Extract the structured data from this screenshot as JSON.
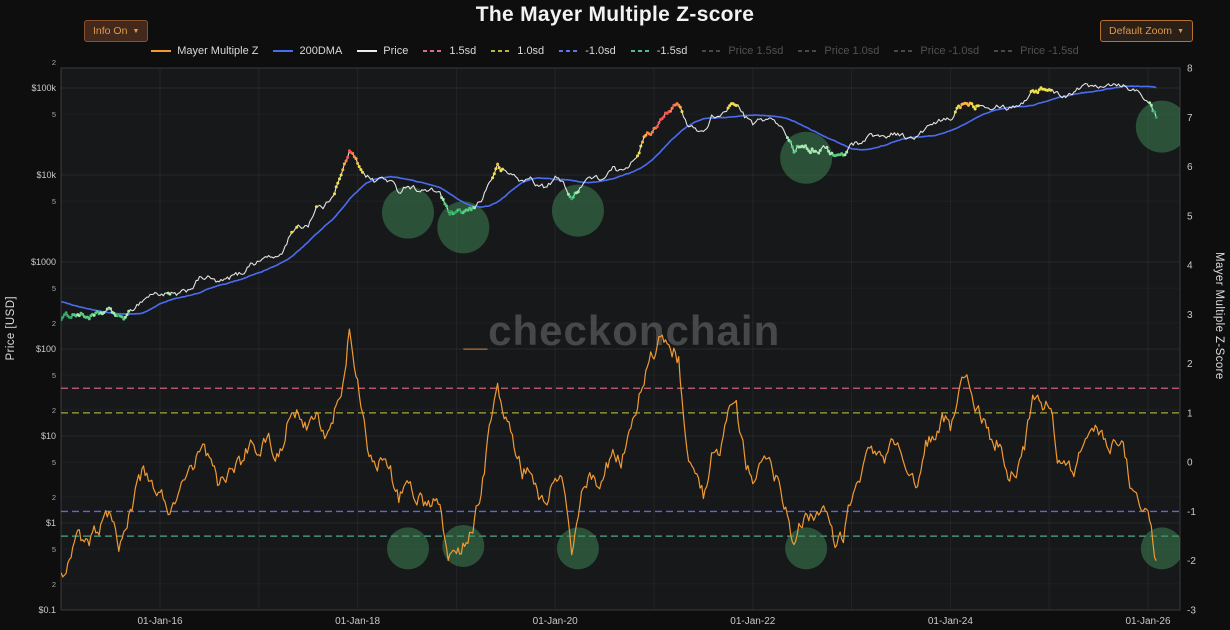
{
  "title": "The Mayer Multiple Z-score",
  "controls": {
    "info_button": {
      "label": "Info On",
      "caret": "▼"
    },
    "zoom_button": {
      "label": "Default Zoom",
      "caret": "▼"
    }
  },
  "watermark": {
    "prefix": "_",
    "text": "checkonchain"
  },
  "colors": {
    "accent": "#e09a4a",
    "background": "#0e0e0f",
    "plot_background": "#17181a",
    "highlight_circle": "#3f8a58"
  },
  "legend": [
    {
      "label": "Mayer Multiple Z",
      "color": "#f09a33",
      "dash": false,
      "active": true
    },
    {
      "label": "200DMA",
      "color": "#4a6cf0",
      "dash": false,
      "active": true
    },
    {
      "label": "Price",
      "color": "#ededed",
      "dash": false,
      "active": true
    },
    {
      "label": "1.5sd",
      "color": "#e06a84",
      "dash": true,
      "active": true
    },
    {
      "label": "1.0sd",
      "color": "#b2b83c",
      "dash": true,
      "active": true
    },
    {
      "label": "-1.0sd",
      "color": "#6472e8",
      "dash": true,
      "active": true
    },
    {
      "label": "-1.5sd",
      "color": "#55b896",
      "dash": true,
      "active": true
    },
    {
      "label": "Price 1.5sd",
      "color": "#6f6f6f",
      "dash": true,
      "active": false
    },
    {
      "label": "Price 1.0sd",
      "color": "#6f6f6f",
      "dash": true,
      "active": false
    },
    {
      "label": "Price -1.0sd",
      "color": "#6f6f6f",
      "dash": true,
      "active": false
    },
    {
      "label": "Price -1.5sd",
      "color": "#6f6f6f",
      "dash": true,
      "active": false
    }
  ],
  "chart_data": {
    "type": "line",
    "title": "The Mayer Multiple Z-score",
    "x_start_year": 2015.0,
    "x_step_years": 0.0833333,
    "x_range_years": [
      2015.0,
      2026.33
    ],
    "x_ticks": [
      {
        "year": 2016,
        "label": "01-Jan-16"
      },
      {
        "year": 2018,
        "label": "01-Jan-18"
      },
      {
        "year": 2020,
        "label": "01-Jan-20"
      },
      {
        "year": 2022,
        "label": "01-Jan-22"
      },
      {
        "year": 2024,
        "label": "01-Jan-24"
      },
      {
        "year": 2026,
        "label": "01-Jan-26"
      }
    ],
    "y_left": {
      "label": "Price [USD]",
      "scale": "log",
      "ticks": [
        {
          "value": 200000,
          "label": "2"
        },
        {
          "value": 100000,
          "label": "$100k"
        },
        {
          "value": 50000,
          "label": "5"
        },
        {
          "value": 10000,
          "label": "$10k"
        },
        {
          "value": 5000,
          "label": "5"
        },
        {
          "value": 1000,
          "label": "$1000"
        },
        {
          "value": 500,
          "label": "5"
        },
        {
          "value": 200,
          "label": "2"
        },
        {
          "value": 100,
          "label": "$100"
        },
        {
          "value": 50,
          "label": "5"
        },
        {
          "value": 20,
          "label": "2"
        },
        {
          "value": 10,
          "label": "$10"
        },
        {
          "value": 5,
          "label": "5"
        },
        {
          "value": 2,
          "label": "2"
        },
        {
          "value": 1,
          "label": "$1"
        },
        {
          "value": 0.5,
          "label": "5"
        },
        {
          "value": 0.2,
          "label": "2"
        },
        {
          "value": 0.1,
          "label": "$0.1"
        }
      ]
    },
    "y_right": {
      "label": "Mayer Multiple Z-Score",
      "range": [
        -3,
        8
      ],
      "ticks": [
        8,
        7,
        6,
        5,
        4,
        3,
        2,
        1,
        0,
        -1,
        -2,
        -3
      ]
    },
    "reference_lines": [
      {
        "name": "1.5sd",
        "z": 1.5,
        "color": "#e06a84"
      },
      {
        "name": "1.0sd",
        "z": 1.0,
        "color": "#b2b83c"
      },
      {
        "name": "-1.0sd",
        "z": -1.0,
        "color": "#6472e8"
      },
      {
        "name": "-1.5sd",
        "z": -1.5,
        "color": "#55b896"
      }
    ],
    "series": [
      {
        "name": "Price",
        "axis": "price",
        "color": "#ededed",
        "values": [
          230,
          245,
          255,
          235,
          235,
          260,
          282,
          230,
          236,
          312,
          372,
          430,
          432,
          420,
          415,
          448,
          530,
          670,
          655,
          575,
          610,
          700,
          745,
          960,
          1000,
          1180,
          1080,
          1350,
          2300,
          2500,
          2700,
          4300,
          4300,
          6100,
          9800,
          19000,
          13500,
          10200,
          8500,
          9200,
          8500,
          6400,
          7700,
          7000,
          6600,
          6500,
          6400,
          3700,
          3500,
          3800,
          4000,
          5200,
          8200,
          12500,
          10500,
          10000,
          8300,
          9200,
          7500,
          7200,
          9100,
          8600,
          5000,
          7500,
          9400,
          9100,
          9200,
          11700,
          10800,
          13500,
          18000,
          28000,
          33000,
          48000,
          58000,
          63500,
          37000,
          34000,
          31000,
          47000,
          43000,
          61000,
          67000,
          47000,
          38000,
          43000,
          45000,
          38000,
          30000,
          19500,
          23000,
          20000,
          19500,
          20500,
          16500,
          16600,
          23000,
          23500,
          28000,
          29000,
          27000,
          30500,
          29200,
          26000,
          27000,
          34500,
          37700,
          42500,
          42500,
          61000,
          70000,
          63000,
          67500,
          61000,
          64500,
          59000,
          63500,
          70000,
          96000,
          95000,
          100000,
          84000,
          83000,
          94000,
          104000,
          106000,
          109000,
          112000,
          113000,
          110000,
          98000,
          90000,
          72000,
          46000
        ]
      },
      {
        "name": "200DMA",
        "axis": "price",
        "color": "#4a6cf0",
        "values": [
          350,
          330,
          310,
          295,
          280,
          268,
          260,
          254,
          252,
          253,
          260,
          290,
          330,
          360,
          385,
          400,
          420,
          450,
          500,
          530,
          560,
          600,
          640,
          700,
          750,
          820,
          900,
          1000,
          1150,
          1400,
          1700,
          2100,
          2600,
          3100,
          4000,
          5300,
          6500,
          8000,
          8900,
          9300,
          9500,
          9300,
          8900,
          8500,
          8100,
          7700,
          7200,
          6300,
          5400,
          4800,
          4400,
          4300,
          4400,
          4900,
          5800,
          7000,
          8200,
          8900,
          9200,
          9100,
          8900,
          8900,
          8700,
          8300,
          8100,
          8300,
          8600,
          9100,
          9800,
          10500,
          11500,
          13000,
          15500,
          19500,
          24500,
          30000,
          36000,
          41000,
          44000,
          45000,
          45500,
          46000,
          47500,
          48500,
          49000,
          48500,
          47800,
          47000,
          45000,
          41500,
          37500,
          33500,
          30000,
          27000,
          24500,
          22000,
          20000,
          19400,
          19600,
          20500,
          22000,
          23800,
          25500,
          26800,
          27400,
          27800,
          28500,
          30000,
          32500,
          35500,
          39500,
          44500,
          49500,
          54000,
          57500,
          59500,
          60500,
          61500,
          63500,
          67500,
          72500,
          77500,
          81500,
          84500,
          87500,
          90500,
          93500,
          97000,
          100500,
          103500,
          105000,
          105000,
          104000,
          101000
        ]
      },
      {
        "name": "Mayer Multiple Z",
        "axis": "z",
        "color": "#f09a33",
        "values": [
          -2.3,
          -1.9,
          -1.5,
          -1.7,
          -1.5,
          -1.2,
          -0.9,
          -1.6,
          -1.3,
          -0.7,
          -0.2,
          -0.5,
          -0.6,
          -0.9,
          -0.8,
          -0.5,
          -0.1,
          0.4,
          0.1,
          -0.4,
          -0.3,
          -0.1,
          0.0,
          0.4,
          0.3,
          0.5,
          0.2,
          0.4,
          1.2,
          0.9,
          0.7,
          1.2,
          0.6,
          0.9,
          1.4,
          2.7,
          1.6,
          0.4,
          -0.1,
          0.0,
          -0.2,
          -0.8,
          -0.4,
          -0.7,
          -0.8,
          -0.8,
          -0.9,
          -1.8,
          -1.9,
          -1.6,
          -1.3,
          -0.6,
          0.6,
          1.5,
          0.8,
          0.4,
          -0.2,
          0.0,
          -0.6,
          -0.8,
          -0.3,
          -0.4,
          -1.9,
          -0.7,
          -0.3,
          -0.4,
          -0.3,
          0.3,
          0.0,
          0.5,
          1.1,
          1.9,
          2.2,
          2.6,
          2.4,
          2.1,
          0.2,
          -0.4,
          -0.7,
          0.2,
          0.0,
          0.9,
          1.0,
          0.1,
          -0.5,
          -0.2,
          0.0,
          -0.4,
          -1.0,
          -1.7,
          -1.2,
          -1.1,
          -1.2,
          -1.1,
          -1.7,
          -1.5,
          -0.7,
          -0.5,
          0.2,
          0.3,
          0.0,
          0.3,
          0.1,
          -0.4,
          -0.4,
          0.3,
          0.6,
          0.9,
          0.7,
          1.5,
          2.0,
          0.9,
          0.9,
          0.4,
          0.4,
          -0.2,
          -0.1,
          0.3,
          1.3,
          1.1,
          1.2,
          0.2,
          -0.2,
          -0.1,
          0.4,
          0.4,
          0.6,
          0.4,
          0.4,
          0.2,
          -0.5,
          -0.8,
          -1.1,
          -2.0
        ]
      }
    ],
    "highlights": [
      {
        "x_year": 2018.51,
        "price": 3700,
        "z": -1.75
      },
      {
        "x_year": 2019.07,
        "price": 2500,
        "z": -1.7
      },
      {
        "x_year": 2020.23,
        "price": 3900,
        "z": -1.75
      },
      {
        "x_year": 2022.54,
        "price": 15800,
        "z": -1.75
      },
      {
        "x_year": 2026.14,
        "price": 36000,
        "z": -1.75
      }
    ]
  }
}
